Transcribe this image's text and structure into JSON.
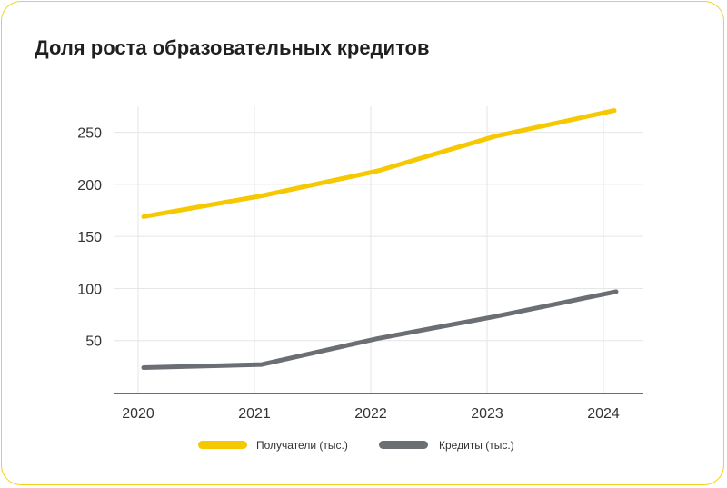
{
  "chart_data": {
    "type": "line",
    "title": "Доля роста образовательных кредитов",
    "categories": [
      "2020",
      "2021",
      "2022",
      "2023",
      "2024"
    ],
    "y_ticks": [
      "50",
      "100",
      "150",
      "200",
      "250"
    ],
    "ylim": [
      0,
      275
    ],
    "grid": true,
    "legend_position": "bottom",
    "series": [
      {
        "name": "Получатели (тыс.)",
        "color": "#f5c800",
        "values": [
          169,
          189,
          213,
          246,
          271
        ]
      },
      {
        "name": "Кредиты (тыс.)",
        "color": "#6b6e73",
        "values": [
          24,
          27,
          52,
          73,
          97
        ]
      }
    ]
  }
}
